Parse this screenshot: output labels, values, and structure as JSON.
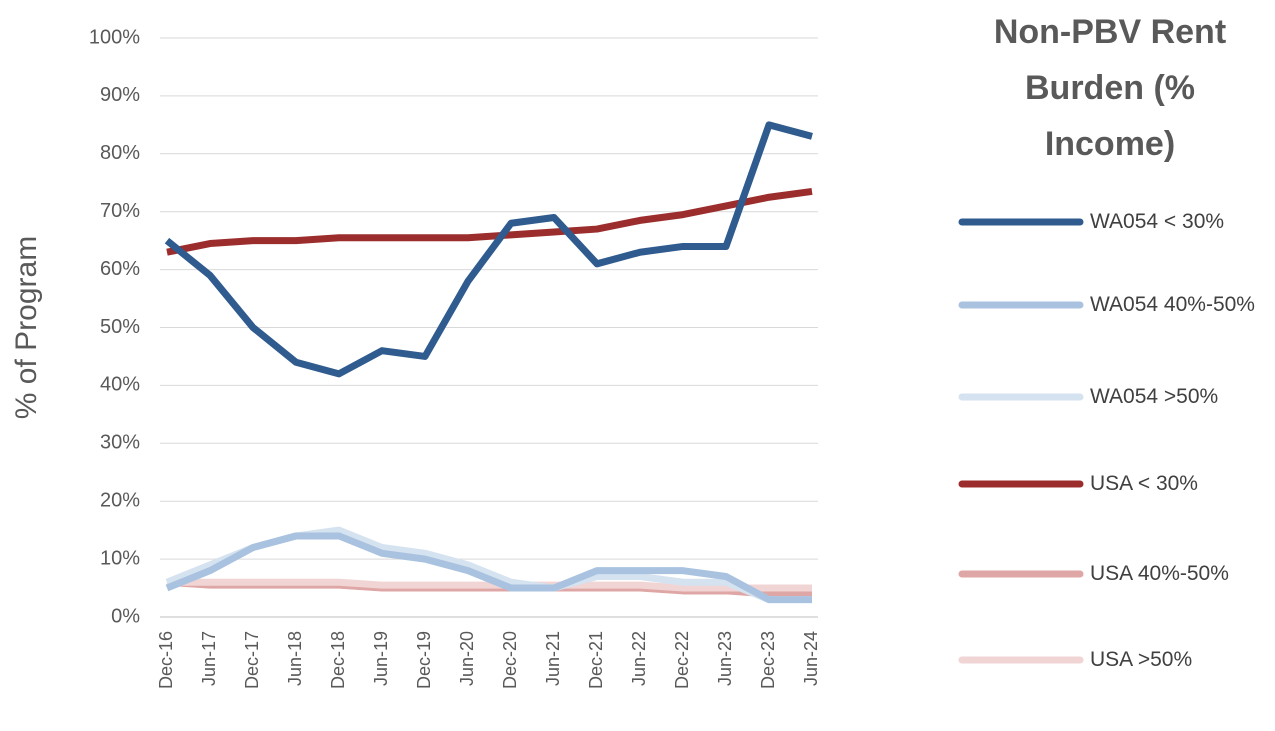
{
  "chart_data": {
    "type": "line",
    "title": "Non-PBV Rent Burden (% Income)",
    "y_label": "% of Program",
    "categories": [
      "Dec-16",
      "Jun-17",
      "Dec-17",
      "Jun-18",
      "Dec-18",
      "Jun-19",
      "Dec-19",
      "Jun-20",
      "Dec-20",
      "Jun-21",
      "Dec-21",
      "Jun-22",
      "Dec-22",
      "Jun-23",
      "Dec-23",
      "Jun-24"
    ],
    "ylim": [
      0,
      100
    ],
    "yticks": [
      {
        "value": 0,
        "label": "0%"
      },
      {
        "value": 10,
        "label": "10%"
      },
      {
        "value": 20,
        "label": "20%"
      },
      {
        "value": 30,
        "label": "30%"
      },
      {
        "value": 40,
        "label": "40%"
      },
      {
        "value": 50,
        "label": "50%"
      },
      {
        "value": 60,
        "label": "60%"
      },
      {
        "value": 70,
        "label": "70%"
      },
      {
        "value": 80,
        "label": "80%"
      },
      {
        "value": 90,
        "label": "90%"
      },
      {
        "value": 100,
        "label": "100%"
      }
    ],
    "grid": true,
    "series": [
      {
        "name": "WA054 < 30%",
        "color": "#2f5b8f",
        "values": [
          65,
          59,
          50,
          44,
          42,
          46,
          45,
          58,
          68,
          69,
          61,
          63,
          64,
          64,
          85,
          83
        ]
      },
      {
        "name": "WA054 40%-50%",
        "color": "#a9c2df",
        "values": [
          5,
          8,
          12,
          14,
          14,
          11,
          10,
          8,
          5,
          5,
          8,
          8,
          8,
          7,
          3,
          3
        ]
      },
      {
        "name": "WA054 >50%",
        "color": "#d5e2f0",
        "values": [
          6,
          9,
          12,
          14,
          15,
          12,
          11,
          9,
          6,
          5,
          7,
          7,
          6,
          6,
          3,
          3
        ]
      },
      {
        "name": "USA < 30%",
        "color": "#9c2d2d",
        "values": [
          63,
          64.5,
          65,
          65,
          65.5,
          65.5,
          65.5,
          65.5,
          66,
          66.5,
          67,
          68.5,
          69.5,
          71,
          72.5,
          73.5
        ]
      },
      {
        "name": "USA 40%-50%",
        "color": "#dfa6a6",
        "values": [
          6,
          5.5,
          5.5,
          5.5,
          5.5,
          5,
          5,
          5,
          5,
          5,
          5,
          5,
          4.5,
          4.5,
          4,
          4
        ]
      },
      {
        "name": "USA >50%",
        "color": "#f1d4d4",
        "values": [
          6,
          6,
          6,
          6,
          6,
          5.5,
          5.5,
          5.5,
          5.5,
          5.5,
          5.5,
          5.5,
          5,
          5,
          5,
          5
        ]
      }
    ]
  }
}
